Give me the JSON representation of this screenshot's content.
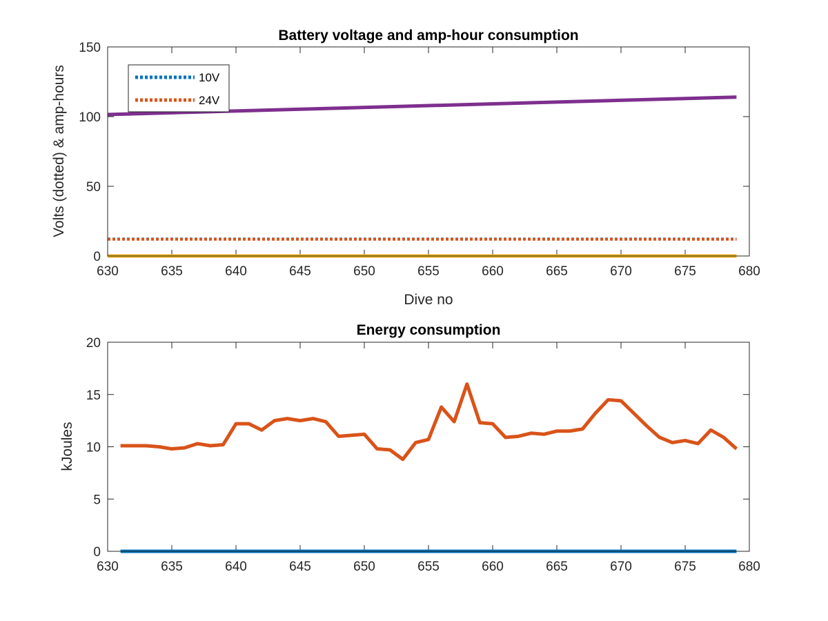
{
  "chart_data": [
    {
      "type": "line",
      "title": "Battery voltage and amp-hour consumption",
      "xlabel": "Dive no",
      "ylabel": "Volts (dotted) & amp-hours",
      "xlim": [
        630,
        680
      ],
      "ylim": [
        0,
        150
      ],
      "xticks": [
        630,
        635,
        640,
        645,
        650,
        655,
        660,
        665,
        670,
        675,
        680
      ],
      "yticks": [
        0,
        50,
        100,
        150
      ],
      "legend_position": "top-left",
      "series": [
        {
          "name": "10V",
          "style": "dotted",
          "color": "#0072BD",
          "x": [
            630,
            679
          ],
          "y": [
            12.2,
            12.2
          ]
        },
        {
          "name": "24V",
          "style": "dotted",
          "color": "#D95319",
          "x": [
            630,
            679
          ],
          "y": [
            12.0,
            12.0
          ]
        },
        {
          "style": "solid",
          "color": "#EDB120",
          "x": [
            630,
            679
          ],
          "y": [
            0,
            0
          ]
        },
        {
          "style": "solid",
          "color": "#7E2F8E",
          "x": [
            630,
            679
          ],
          "y": [
            101.5,
            114
          ]
        }
      ]
    },
    {
      "type": "line",
      "title": "Energy consumption",
      "xlabel": "",
      "ylabel": "kJoules",
      "xlim": [
        630,
        680
      ],
      "ylim": [
        0,
        20
      ],
      "xticks": [
        630,
        635,
        640,
        645,
        650,
        655,
        660,
        665,
        670,
        675,
        680
      ],
      "yticks": [
        0,
        5,
        10,
        15,
        20
      ],
      "series": [
        {
          "style": "solid",
          "color": "#0072BD",
          "x": [
            631,
            679
          ],
          "y": [
            0,
            0
          ]
        },
        {
          "style": "solid",
          "color": "#D95319",
          "x": [
            631,
            632,
            633,
            634,
            635,
            636,
            637,
            638,
            639,
            640,
            641,
            642,
            643,
            644,
            645,
            646,
            647,
            648,
            649,
            650,
            651,
            652,
            653,
            654,
            655,
            656,
            657,
            658,
            659,
            660,
            661,
            662,
            663,
            664,
            665,
            666,
            667,
            668,
            669,
            670,
            671,
            672,
            673,
            674,
            675,
            676,
            677,
            678,
            679
          ],
          "y": [
            10.1,
            10.1,
            10.1,
            10.0,
            9.8,
            9.9,
            10.3,
            10.1,
            10.2,
            12.2,
            12.2,
            11.6,
            12.5,
            12.7,
            12.5,
            12.7,
            12.4,
            11.0,
            11.1,
            11.2,
            9.8,
            9.7,
            8.8,
            10.4,
            10.7,
            13.8,
            12.4,
            16.0,
            12.3,
            12.2,
            10.9,
            11.0,
            11.3,
            11.2,
            11.5,
            11.5,
            11.7,
            13.2,
            14.5,
            14.4,
            13.2,
            12.0,
            10.9,
            10.4,
            10.6,
            10.3,
            11.6,
            10.9,
            9.8
          ]
        }
      ]
    }
  ]
}
